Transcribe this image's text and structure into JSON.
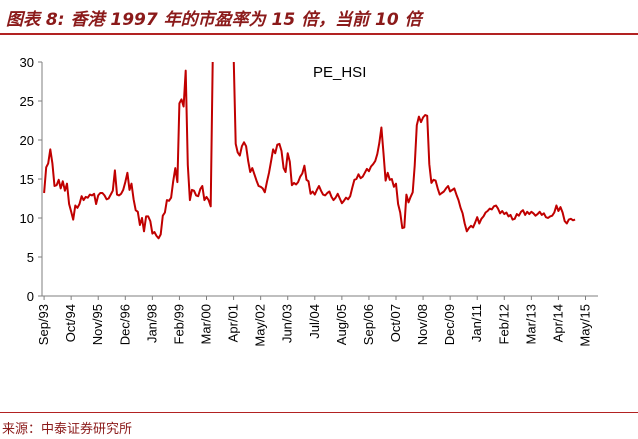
{
  "header": {
    "title": "图表 8:  香港 1997 年的市盈率为 15 倍，当前 10 倍"
  },
  "footer": {
    "source": "来源：中泰证券研究所"
  },
  "chart_data": {
    "type": "line",
    "title": "",
    "xlabel": "",
    "ylabel": "",
    "ylim": [
      0,
      30
    ],
    "yticks": [
      0,
      5,
      10,
      15,
      20,
      25,
      30
    ],
    "xlim": [
      "1993-08",
      "2015-11"
    ],
    "grid": false,
    "legend_placement": "top-center",
    "colors": {
      "series": "#c00000",
      "axis": "#7f7f7f"
    },
    "xtick_labels": [
      "Sep/93",
      "Oct/94",
      "Nov/95",
      "Dec/96",
      "Jan/98",
      "Feb/99",
      "Mar/00",
      "Apr/01",
      "May/02",
      "Jun/03",
      "Jul/04",
      "Aug/05",
      "Sep/06",
      "Oct/07",
      "Nov/08",
      "Dec/09",
      "Jan/11",
      "Feb/12",
      "Mar/13",
      "Apr/14",
      "May/15"
    ],
    "series": [
      {
        "name": "PE_HSI",
        "points": [
          [
            "1993-09",
            13.2
          ],
          [
            "1993-10",
            16.5
          ],
          [
            "1993-11",
            17.0
          ],
          [
            "1993-12",
            18.8
          ],
          [
            "1994-01",
            17.0
          ],
          [
            "1994-02",
            14.1
          ],
          [
            "1994-03",
            14.2
          ],
          [
            "1994-04",
            14.9
          ],
          [
            "1994-05",
            13.8
          ],
          [
            "1994-06",
            14.7
          ],
          [
            "1994-07",
            13.5
          ],
          [
            "1994-08",
            14.4
          ],
          [
            "1994-09",
            11.8
          ],
          [
            "1994-10",
            10.8
          ],
          [
            "1994-11",
            9.8
          ],
          [
            "1994-12",
            11.6
          ],
          [
            "1995-01",
            11.3
          ],
          [
            "1995-02",
            11.8
          ],
          [
            "1995-03",
            12.8
          ],
          [
            "1995-04",
            12.3
          ],
          [
            "1995-05",
            12.7
          ],
          [
            "1995-06",
            12.6
          ],
          [
            "1995-07",
            13.0
          ],
          [
            "1995-08",
            12.9
          ],
          [
            "1995-09",
            13.1
          ],
          [
            "1995-10",
            11.8
          ],
          [
            "1995-11",
            12.9
          ],
          [
            "1995-12",
            13.2
          ],
          [
            "1996-01",
            13.2
          ],
          [
            "1996-02",
            12.9
          ],
          [
            "1996-03",
            12.4
          ],
          [
            "1996-04",
            12.5
          ],
          [
            "1996-05",
            13.0
          ],
          [
            "1996-06",
            13.5
          ],
          [
            "1996-07",
            16.1
          ],
          [
            "1996-08",
            13.0
          ],
          [
            "1996-09",
            12.9
          ],
          [
            "1996-10",
            13.1
          ],
          [
            "1996-11",
            13.6
          ],
          [
            "1996-12",
            14.6
          ],
          [
            "1997-01",
            15.8
          ],
          [
            "1997-02",
            13.6
          ],
          [
            "1997-03",
            14.4
          ],
          [
            "1997-04",
            12.4
          ],
          [
            "1997-05",
            11.0
          ],
          [
            "1997-06",
            10.8
          ],
          [
            "1997-07",
            9.1
          ],
          [
            "1997-08",
            10.0
          ],
          [
            "1997-09",
            8.3
          ],
          [
            "1997-10",
            10.2
          ],
          [
            "1997-11",
            10.2
          ],
          [
            "1997-12",
            9.6
          ],
          [
            "1998-01",
            8.0
          ],
          [
            "1998-02",
            8.2
          ],
          [
            "1998-03",
            7.7
          ],
          [
            "1998-04",
            7.4
          ],
          [
            "1998-05",
            7.9
          ],
          [
            "1998-06",
            10.3
          ],
          [
            "1998-07",
            10.7
          ],
          [
            "1998-08",
            12.3
          ],
          [
            "1998-09",
            12.2
          ],
          [
            "1998-10",
            12.6
          ],
          [
            "1998-11",
            14.7
          ],
          [
            "1998-12",
            16.4
          ],
          [
            "1999-01",
            14.6
          ],
          [
            "1999-02",
            24.7
          ],
          [
            "1999-03",
            25.2
          ],
          [
            "1999-04",
            24.3
          ],
          [
            "1999-05",
            28.9
          ],
          [
            "1999-06",
            16.8
          ],
          [
            "1999-07",
            12.3
          ],
          [
            "1999-08",
            13.6
          ],
          [
            "1999-09",
            13.5
          ],
          [
            "1999-10",
            12.9
          ],
          [
            "1999-11",
            12.8
          ],
          [
            "1999-12",
            13.7
          ],
          [
            "2000-01",
            14.1
          ],
          [
            "2000-02",
            12.3
          ],
          [
            "2000-03",
            12.7
          ],
          [
            "2000-04",
            12.3
          ],
          [
            "2000-05",
            11.5
          ],
          [
            "2000-06",
            31.0
          ],
          [
            "2000-07",
            31.0
          ],
          [
            "2001-03",
            31.0
          ],
          [
            "2001-04",
            31.0
          ],
          [
            "2001-05",
            19.5
          ],
          [
            "2001-06",
            18.4
          ],
          [
            "2001-07",
            18.0
          ],
          [
            "2001-08",
            19.2
          ],
          [
            "2001-09",
            19.7
          ],
          [
            "2001-10",
            19.2
          ],
          [
            "2001-11",
            17.3
          ],
          [
            "2001-12",
            15.9
          ],
          [
            "2002-01",
            16.4
          ],
          [
            "2002-02",
            15.6
          ],
          [
            "2002-03",
            14.8
          ],
          [
            "2002-04",
            14.1
          ],
          [
            "2002-05",
            14.0
          ],
          [
            "2002-06",
            13.8
          ],
          [
            "2002-07",
            13.3
          ],
          [
            "2002-08",
            14.6
          ],
          [
            "2002-09",
            15.8
          ],
          [
            "2002-10",
            17.3
          ],
          [
            "2002-11",
            18.8
          ],
          [
            "2002-12",
            18.3
          ],
          [
            "2003-01",
            19.4
          ],
          [
            "2003-02",
            19.5
          ],
          [
            "2003-03",
            18.6
          ],
          [
            "2003-04",
            16.4
          ],
          [
            "2003-05",
            15.9
          ],
          [
            "2003-06",
            18.3
          ],
          [
            "2003-07",
            17.2
          ],
          [
            "2003-08",
            14.2
          ],
          [
            "2003-09",
            14.5
          ],
          [
            "2003-10",
            14.3
          ],
          [
            "2003-11",
            14.6
          ],
          [
            "2003-12",
            15.3
          ],
          [
            "2004-01",
            15.7
          ],
          [
            "2004-02",
            16.7
          ],
          [
            "2004-03",
            14.9
          ],
          [
            "2004-04",
            14.7
          ],
          [
            "2004-05",
            13.1
          ],
          [
            "2004-06",
            13.4
          ],
          [
            "2004-07",
            13.0
          ],
          [
            "2004-08",
            13.6
          ],
          [
            "2004-09",
            14.1
          ],
          [
            "2004-10",
            13.5
          ],
          [
            "2004-11",
            13.0
          ],
          [
            "2004-12",
            12.9
          ],
          [
            "2005-01",
            13.2
          ],
          [
            "2005-02",
            13.4
          ],
          [
            "2005-03",
            12.7
          ],
          [
            "2005-04",
            12.3
          ],
          [
            "2005-05",
            12.6
          ],
          [
            "2005-06",
            13.1
          ],
          [
            "2005-07",
            12.5
          ],
          [
            "2005-08",
            11.9
          ],
          [
            "2005-09",
            12.2
          ],
          [
            "2005-10",
            12.6
          ],
          [
            "2005-11",
            12.4
          ],
          [
            "2005-12",
            12.8
          ],
          [
            "2006-01",
            13.9
          ],
          [
            "2006-02",
            14.9
          ],
          [
            "2006-03",
            15.0
          ],
          [
            "2006-04",
            15.6
          ],
          [
            "2006-05",
            15.1
          ],
          [
            "2006-06",
            15.3
          ],
          [
            "2006-07",
            15.8
          ],
          [
            "2006-08",
            16.3
          ],
          [
            "2006-09",
            16.0
          ],
          [
            "2006-10",
            16.6
          ],
          [
            "2006-11",
            16.9
          ],
          [
            "2006-12",
            17.3
          ],
          [
            "2007-01",
            18.2
          ],
          [
            "2007-02",
            19.6
          ],
          [
            "2007-03",
            21.6
          ],
          [
            "2007-04",
            18.3
          ],
          [
            "2007-05",
            14.8
          ],
          [
            "2007-06",
            15.8
          ],
          [
            "2007-07",
            14.9
          ],
          [
            "2007-08",
            15.0
          ],
          [
            "2007-09",
            14.0
          ],
          [
            "2007-10",
            14.4
          ],
          [
            "2007-11",
            11.8
          ],
          [
            "2007-12",
            10.7
          ],
          [
            "2008-01",
            8.7
          ],
          [
            "2008-02",
            8.8
          ],
          [
            "2008-03",
            13.0
          ],
          [
            "2008-04",
            12.0
          ],
          [
            "2008-05",
            12.7
          ],
          [
            "2008-06",
            13.3
          ],
          [
            "2008-07",
            16.7
          ],
          [
            "2008-08",
            21.9
          ],
          [
            "2008-09",
            23.0
          ],
          [
            "2008-10",
            22.3
          ],
          [
            "2008-11",
            22.9
          ],
          [
            "2008-12",
            23.2
          ],
          [
            "2009-01",
            23.1
          ],
          [
            "2009-02",
            16.9
          ],
          [
            "2009-03",
            14.5
          ],
          [
            "2009-04",
            14.9
          ],
          [
            "2009-05",
            14.8
          ],
          [
            "2009-06",
            13.8
          ],
          [
            "2009-07",
            13.0
          ],
          [
            "2009-08",
            13.2
          ],
          [
            "2009-09",
            13.4
          ],
          [
            "2009-10",
            13.8
          ],
          [
            "2009-11",
            14.1
          ],
          [
            "2009-12",
            13.4
          ],
          [
            "2010-01",
            13.6
          ],
          [
            "2010-02",
            13.8
          ],
          [
            "2010-03",
            13.0
          ],
          [
            "2010-04",
            12.3
          ],
          [
            "2010-05",
            11.3
          ],
          [
            "2010-06",
            10.6
          ],
          [
            "2010-07",
            9.3
          ],
          [
            "2010-08",
            8.3
          ],
          [
            "2010-09",
            8.7
          ],
          [
            "2010-10",
            9.0
          ],
          [
            "2010-11",
            8.8
          ],
          [
            "2010-12",
            9.4
          ],
          [
            "2011-01",
            10.1
          ],
          [
            "2011-02",
            9.3
          ],
          [
            "2011-03",
            9.9
          ],
          [
            "2011-04",
            10.2
          ],
          [
            "2011-05",
            10.7
          ],
          [
            "2011-06",
            10.9
          ],
          [
            "2011-07",
            11.2
          ],
          [
            "2011-08",
            11.1
          ],
          [
            "2011-09",
            11.5
          ],
          [
            "2011-10",
            11.6
          ],
          [
            "2011-11",
            11.2
          ],
          [
            "2011-12",
            10.6
          ],
          [
            "2012-01",
            10.9
          ],
          [
            "2012-02",
            10.5
          ],
          [
            "2012-03",
            10.7
          ],
          [
            "2012-04",
            10.2
          ],
          [
            "2012-05",
            10.4
          ],
          [
            "2012-06",
            9.8
          ],
          [
            "2012-07",
            9.9
          ],
          [
            "2012-08",
            10.5
          ],
          [
            "2012-09",
            10.3
          ],
          [
            "2012-10",
            10.8
          ],
          [
            "2012-11",
            11.0
          ],
          [
            "2012-12",
            10.4
          ],
          [
            "2013-01",
            10.8
          ],
          [
            "2013-02",
            10.5
          ],
          [
            "2013-03",
            10.8
          ],
          [
            "2013-04",
            10.6
          ],
          [
            "2013-05",
            10.3
          ],
          [
            "2013-06",
            10.5
          ],
          [
            "2013-07",
            10.8
          ],
          [
            "2013-08",
            10.4
          ],
          [
            "2013-09",
            10.6
          ],
          [
            "2013-10",
            10.1
          ],
          [
            "2013-11",
            10.0
          ],
          [
            "2013-12",
            10.2
          ],
          [
            "2014-01",
            10.3
          ],
          [
            "2014-02",
            10.7
          ],
          [
            "2014-03",
            11.6
          ],
          [
            "2014-04",
            10.9
          ],
          [
            "2014-05",
            11.4
          ],
          [
            "2014-06",
            10.7
          ],
          [
            "2014-07",
            9.6
          ],
          [
            "2014-08",
            9.3
          ],
          [
            "2014-09",
            9.8
          ],
          [
            "2014-10",
            9.9
          ],
          [
            "2014-11",
            9.7
          ],
          [
            "2014-12",
            9.8
          ]
        ]
      }
    ]
  }
}
